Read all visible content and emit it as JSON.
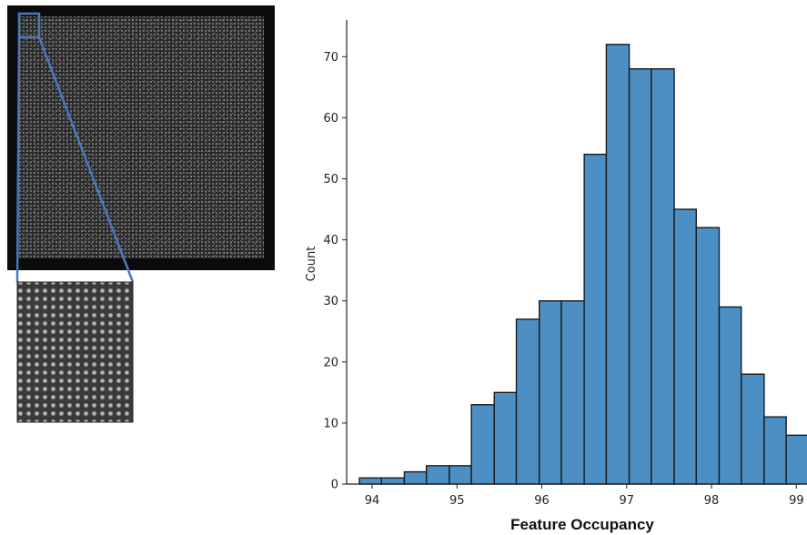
{
  "figure": {
    "inset_panel": {
      "description_visible": false
    }
  },
  "chart_data": {
    "type": "bar",
    "xlabel": "Feature Occupancy",
    "ylabel": "Count",
    "xlim": [
      93.7,
      99.05
    ],
    "ylim": [
      0,
      76
    ],
    "xticks": [
      94,
      95,
      96,
      97,
      98,
      99
    ],
    "yticks": [
      0,
      10,
      20,
      30,
      40,
      50,
      60,
      70
    ],
    "bin_edges": [
      93.85,
      94.11,
      94.38,
      94.64,
      94.91,
      95.17,
      95.44,
      95.7,
      95.97,
      96.23,
      96.5,
      96.76,
      97.03,
      97.29,
      97.56,
      97.82,
      98.09,
      98.35,
      98.62,
      98.88,
      99.15
    ],
    "values": [
      1,
      1,
      2,
      3,
      3,
      13,
      15,
      27,
      30,
      30,
      54,
      72,
      68,
      68,
      45,
      42,
      29,
      18,
      11,
      8
    ],
    "bar_color": "#4c8fc4",
    "edge_color": "#1a1a1a",
    "grid": false
  }
}
